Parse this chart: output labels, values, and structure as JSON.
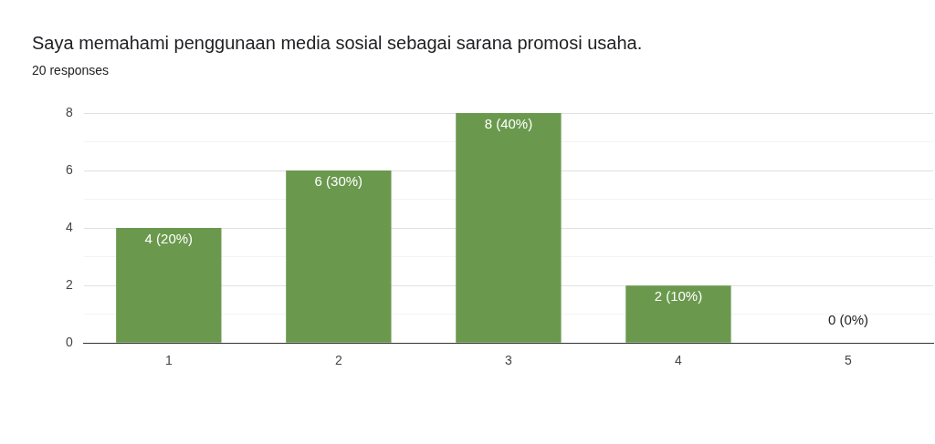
{
  "chart_data": {
    "type": "bar",
    "title": "Saya memahami penggunaan media sosial sebagai sarana promosi usaha.",
    "subtitle": "20 responses",
    "categories": [
      "1",
      "2",
      "3",
      "4",
      "5"
    ],
    "values": [
      4,
      6,
      8,
      2,
      0
    ],
    "value_labels": [
      "4 (20%)",
      "6 (30%)",
      "8 (40%)",
      "2 (10%)",
      "0 (0%)"
    ],
    "color": "#6a994e",
    "ylim": [
      0,
      8
    ],
    "yticks": [
      0,
      {
        "value": 1,
        "label": null
      },
      2,
      {
        "value": 3,
        "label": null
      },
      4,
      {
        "value": 5,
        "label": null
      },
      6,
      {
        "value": 7,
        "label": null
      },
      8
    ],
    "grid": "y",
    "legend": false
  }
}
